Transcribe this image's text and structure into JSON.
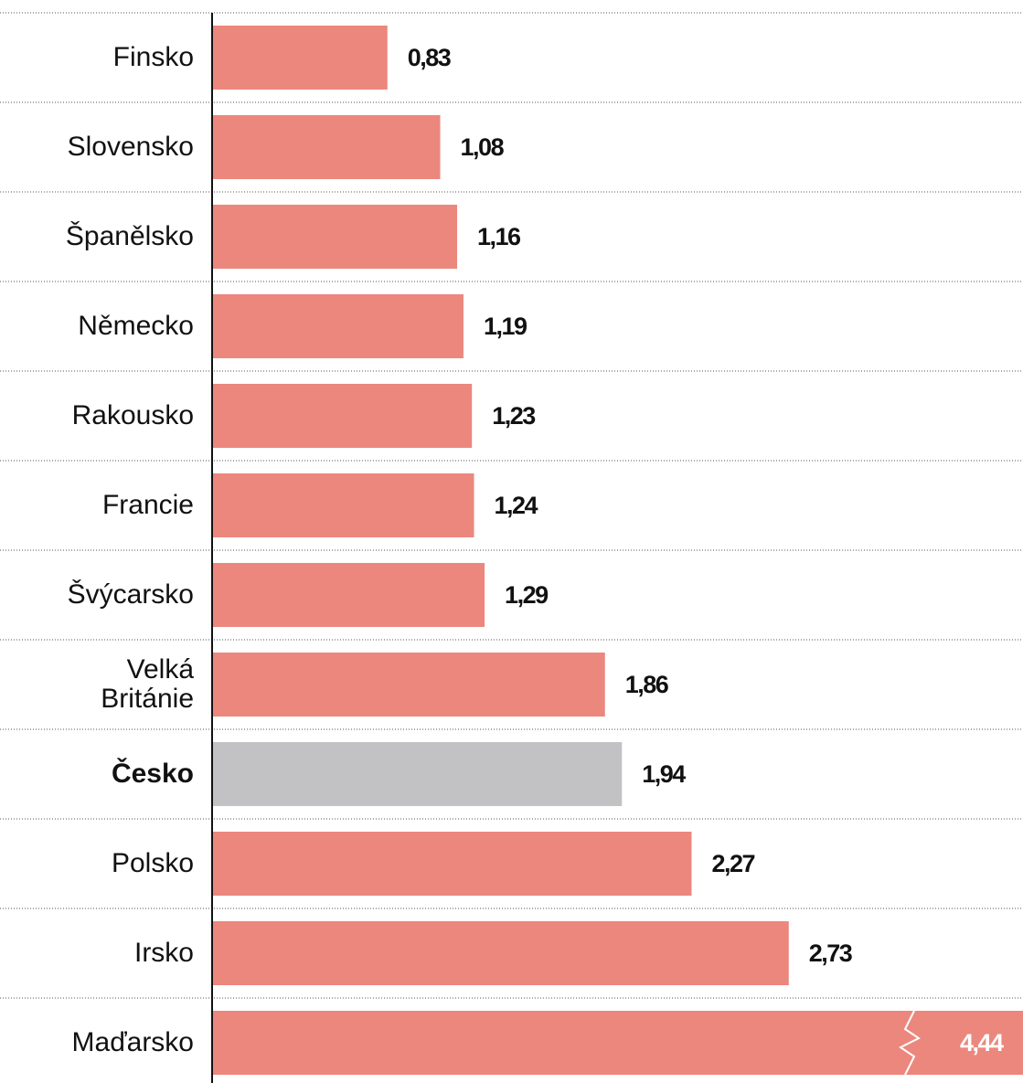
{
  "chart_data": {
    "type": "barh",
    "categories": [
      "Finsko",
      "Slovensko",
      "Španělsko",
      "Německo",
      "Rakousko",
      "Francie",
      "Švýcarsko",
      "Velká Británie",
      "Česko",
      "Polsko",
      "Irsko",
      "Maďarsko"
    ],
    "values": [
      0.83,
      1.08,
      1.16,
      1.19,
      1.23,
      1.24,
      1.29,
      1.86,
      1.94,
      2.27,
      2.73,
      4.44
    ],
    "value_labels": [
      "0,83",
      "1,08",
      "1,16",
      "1,19",
      "1,23",
      "1,24",
      "1,29",
      "1,86",
      "1,94",
      "2,27",
      "2,73",
      "4,44"
    ],
    "colors": [
      "#ec877d",
      "#ec877d",
      "#ec877d",
      "#ec877d",
      "#ec877d",
      "#ec877d",
      "#ec877d",
      "#ec877d",
      "#c2c1c4",
      "#ec877d",
      "#ec877d",
      "#ec877d"
    ],
    "highlight": 8,
    "xlim": [
      0,
      3.8
    ]
  }
}
